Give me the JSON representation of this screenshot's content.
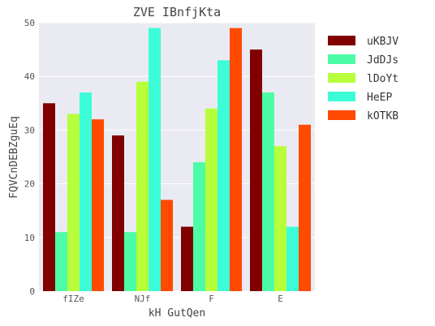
{
  "chart_data": {
    "type": "bar",
    "title": "ZVE IBnfjKta",
    "xlabel": "kH GutQen",
    "ylabel": "FQVCnDEBZguEq",
    "categories": [
      "fIZe",
      "NJf",
      "F",
      "E"
    ],
    "ylim": [
      0,
      50
    ],
    "yticks": [
      0,
      10,
      20,
      30,
      40,
      50
    ],
    "grid": true,
    "legend_position": "right",
    "series": [
      {
        "name": "uKBJV",
        "color": "#800000",
        "values": [
          35,
          29,
          12,
          45
        ]
      },
      {
        "name": "JdDJs",
        "color": "#4dfca6",
        "values": [
          11,
          11,
          24,
          37
        ]
      },
      {
        "name": "lDoYt",
        "color": "#b6ff3a",
        "values": [
          33,
          39,
          34,
          27
        ]
      },
      {
        "name": "HeEP",
        "color": "#3cfdd7",
        "values": [
          37,
          49,
          43,
          12
        ]
      },
      {
        "name": "kOTKB",
        "color": "#ff4a00",
        "values": [
          32,
          17,
          49,
          31
        ]
      }
    ]
  }
}
